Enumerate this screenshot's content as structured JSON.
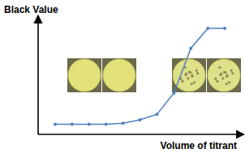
{
  "chart_data": {
    "type": "line",
    "x_label": "Volume of titrant",
    "y_label": "Black Value",
    "x": [
      1,
      2,
      3,
      4,
      5,
      6,
      7,
      8,
      9,
      10,
      11
    ],
    "values": [
      9,
      9,
      9,
      9,
      10,
      13,
      18,
      37,
      77,
      95,
      95
    ],
    "xlim": [
      0,
      12
    ],
    "ylim": [
      0,
      100
    ],
    "tick_labels": false,
    "grid": false,
    "color": "#4f81bd",
    "marker": "circle",
    "line_style": "solid"
  }
}
